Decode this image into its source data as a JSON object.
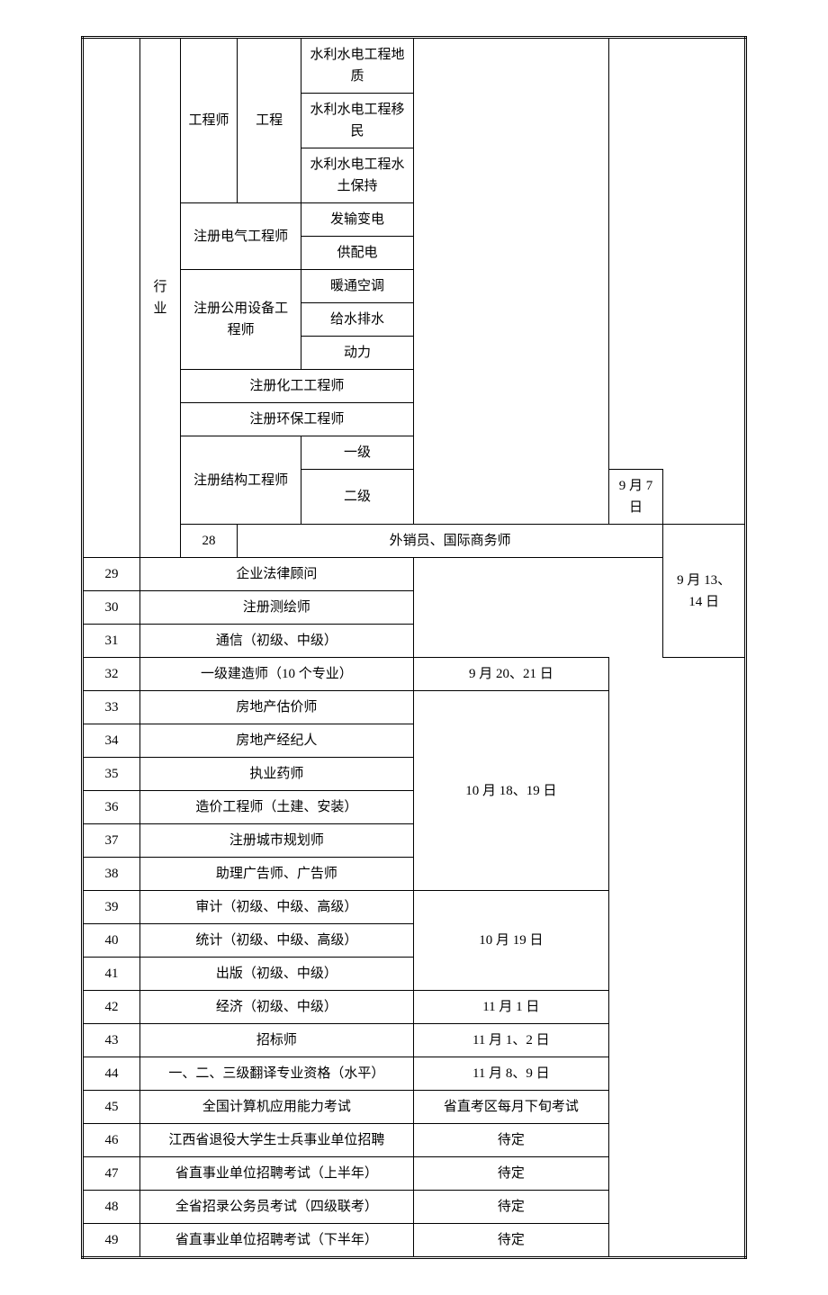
{
  "table": {
    "cells": {
      "industry": "行业",
      "engineer": "工程师",
      "engineering": "工程",
      "geology": "水利水电工程地质",
      "migrant": "水利水电工程移民",
      "waterSoil": "水利水电工程水土保持",
      "electrical": "注册电气工程师",
      "transmission": "发输变电",
      "supply": "供配电",
      "publicEquip": "注册公用设备工程师",
      "hvac": "暖通空调",
      "waterDrain": "给水排水",
      "power": "动力",
      "chemical": "注册化工工程师",
      "envProtect": "注册环保工程师",
      "structural": "注册结构工程师",
      "level1": "一级",
      "level2": "二级",
      "sep7": "9 月 7 日",
      "n28": "28",
      "exporter": "外销员、国际商务师",
      "n29": "29",
      "legal": "企业法律顾问",
      "n30": "30",
      "surveying": "注册测绘师",
      "n31": "31",
      "telecom": "通信（初级、中级）",
      "sep1314": "9 月 13、14 日",
      "n32": "32",
      "constructor1": "一级建造师（10 个专业）",
      "sep2021": "9 月 20、21 日",
      "n33": "33",
      "realEstate": "房地产估价师",
      "n34": "34",
      "realAgent": "房地产经纪人",
      "n35": "35",
      "pharmacist": "执业药师",
      "n36": "36",
      "costEng": "造价工程师（土建、安装）",
      "n37": "37",
      "cityPlan": "注册城市规划师",
      "n38": "38",
      "advertising": "助理广告师、广告师",
      "oct1819": "10 月 18、19 日",
      "n39": "39",
      "audit": "审计（初级、中级、高级）",
      "n40": "40",
      "statistics": "统计（初级、中级、高级）",
      "n41": "41",
      "publishing": "出版（初级、中级）",
      "oct19": "10 月 19 日",
      "n42": "42",
      "economy": "经济（初级、中级）",
      "nov1": "11 月 1 日",
      "n43": "43",
      "bidding": "招标师",
      "nov12": "11 月 1、2 日",
      "n44": "44",
      "translation": "一、二、三级翻译专业资格（水平）",
      "nov89": "11 月 8、9 日",
      "n45": "45",
      "computer": "全国计算机应用能力考试",
      "monthly": "省直考区每月下旬考试",
      "n46": "46",
      "jiangxi": "江西省退役大学生士兵事业单位招聘",
      "tbd1": "待定",
      "n47": "47",
      "provH1": "省直事业单位招聘考试（上半年）",
      "tbd2": "待定",
      "n48": "48",
      "civil": "全省招录公务员考试（四级联考）",
      "tbd3": "待定",
      "n49": "49",
      "provH2": "省直事业单位招聘考试（下半年）",
      "tbd4": "待定"
    }
  }
}
